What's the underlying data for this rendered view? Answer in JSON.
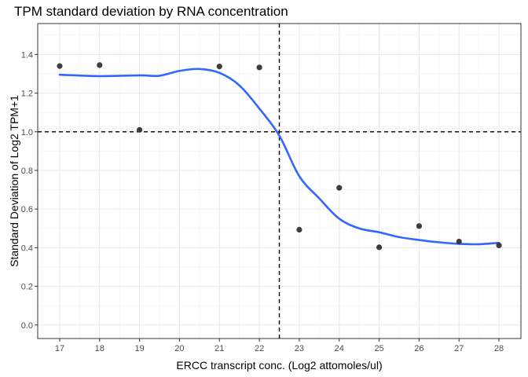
{
  "chart_data": {
    "type": "scatter",
    "title": "TPM standard deviation by RNA concentration",
    "xlabel": "ERCC transcript conc. (Log2 attomoles/ul)",
    "ylabel": "Standard Deviation of Log2 TPM+1",
    "xlim": [
      16.45,
      28.55
    ],
    "ylim": [
      -0.07,
      1.56
    ],
    "x_ticks": [
      17,
      18,
      19,
      20,
      21,
      22,
      23,
      24,
      25,
      26,
      27,
      28
    ],
    "y_ticks": [
      0.0,
      0.2,
      0.4,
      0.6,
      0.8,
      1.0,
      1.2,
      1.4
    ],
    "y_tick_labels": [
      "0.0",
      "0.2",
      "0.4",
      "0.6",
      "0.8",
      "1.0",
      "1.2",
      "1.4"
    ],
    "grid": true,
    "points": [
      {
        "x": 17,
        "y": 1.34
      },
      {
        "x": 18,
        "y": 1.345
      },
      {
        "x": 19,
        "y": 1.01
      },
      {
        "x": 21,
        "y": 1.338
      },
      {
        "x": 22,
        "y": 1.333
      },
      {
        "x": 23,
        "y": 0.493
      },
      {
        "x": 24,
        "y": 0.71
      },
      {
        "x": 25,
        "y": 0.402
      },
      {
        "x": 26,
        "y": 0.512
      },
      {
        "x": 27,
        "y": 0.432
      },
      {
        "x": 28,
        "y": 0.412
      }
    ],
    "smooth_curve": {
      "x": [
        17,
        18,
        19,
        19.5,
        20,
        20.5,
        21,
        21.5,
        22,
        22.5,
        23,
        23.5,
        24,
        24.5,
        25,
        25.5,
        26,
        26.5,
        27,
        27.5,
        28
      ],
      "y": [
        1.295,
        1.288,
        1.292,
        1.29,
        1.315,
        1.325,
        1.305,
        1.24,
        1.12,
        0.98,
        0.77,
        0.655,
        0.55,
        0.5,
        0.48,
        0.455,
        0.44,
        0.428,
        0.42,
        0.418,
        0.425
      ]
    },
    "reference_lines": {
      "vertical_x": 22.5,
      "horizontal_y": 1.0
    },
    "colors": {
      "points": "#333333",
      "curve": "#3366ff",
      "reference_lines": "#000000",
      "grid_major": "#e6e6e6",
      "grid_minor": "#f2f2f2",
      "panel_border": "#333333"
    }
  }
}
